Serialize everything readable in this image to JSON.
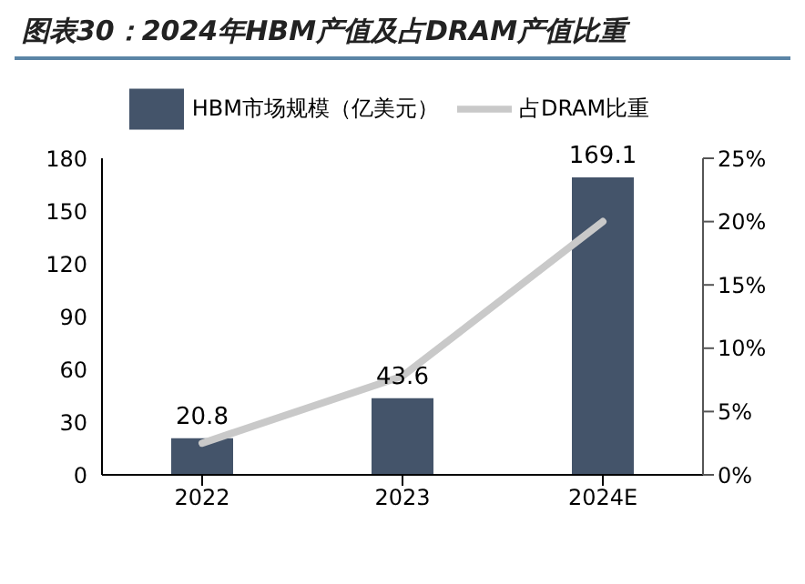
{
  "chart_data": {
    "type": "bar",
    "title": "图表30：2024年HBM产值及占DRAM产值比重",
    "categories": [
      "2022",
      "2023",
      "2024E"
    ],
    "series": [
      {
        "name": "HBM市场规模（亿美元）",
        "color": "#44546a",
        "values": [
          20.8,
          43.6,
          169.1
        ],
        "value_labels": [
          "20.8",
          "43.6",
          "169.1"
        ]
      },
      {
        "name": "占DRAM比重",
        "type": "line",
        "axis": "y2",
        "color": "#c9c9c9",
        "values": [
          2.5,
          7.8,
          20
        ]
      }
    ],
    "ylim": [
      0,
      180
    ],
    "yticks": [
      0,
      30,
      60,
      90,
      120,
      150,
      180
    ],
    "y2lim": [
      0,
      25
    ],
    "y2ticks": [
      {
        "value": 0,
        "label": "0%"
      },
      {
        "value": 5,
        "label": "5%"
      },
      {
        "value": 10,
        "label": "10%"
      },
      {
        "value": 15,
        "label": "15%"
      },
      {
        "value": 20,
        "label": "20%"
      },
      {
        "value": 25,
        "label": "25%"
      }
    ],
    "legend": "top",
    "marker": "none"
  }
}
